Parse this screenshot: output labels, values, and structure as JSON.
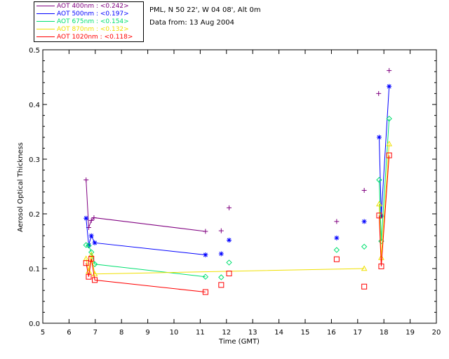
{
  "header": {
    "site_line": "PML, N 50 22', W 04 08', Alt 0m",
    "date_line": "Data from: 13 Aug 2004"
  },
  "chart_data": {
    "type": "scatter",
    "title": "",
    "xlabel": "Time (GMT)",
    "ylabel": "Aerosol Optical Thickness",
    "xlim": [
      5,
      20
    ],
    "ylim": [
      0.0,
      0.5
    ],
    "xticks": [
      "5",
      "6",
      "7",
      "8",
      "9",
      "10",
      "11",
      "12",
      "13",
      "14",
      "15",
      "16",
      "17",
      "18",
      "19",
      "20"
    ],
    "yticks": [
      "0.0",
      "0.1",
      "0.2",
      "0.3",
      "0.4",
      "0.5"
    ],
    "legend_position": "top-left, outside plot",
    "series": [
      {
        "name": "AOT 400nm",
        "legend_label": "AOT  400nm : <0.242>",
        "color": "#800080",
        "marker": "plus",
        "x": [
          6.65,
          6.75,
          6.85,
          6.95,
          11.2,
          11.8,
          12.1,
          16.2,
          17.25,
          17.8,
          18.2
        ],
        "y": [
          0.262,
          0.175,
          0.188,
          0.193,
          0.168,
          0.169,
          0.211,
          0.186,
          0.243,
          0.42,
          0.462
        ],
        "lines": [
          [
            0,
            4
          ],
          [
            9,
            9
          ]
        ]
      },
      {
        "name": "AOT 500nm",
        "legend_label": "AOT  500nm : <0.197>",
        "color": "#0000ff",
        "marker": "asterisk",
        "x": [
          6.65,
          6.75,
          6.85,
          6.98,
          11.2,
          11.8,
          12.1,
          16.2,
          17.25,
          17.82,
          17.9,
          18.2
        ],
        "y": [
          0.192,
          0.143,
          0.16,
          0.147,
          0.125,
          0.127,
          0.152,
          0.156,
          0.186,
          0.34,
          0.196,
          0.433
        ],
        "lines": [
          [
            0,
            4
          ],
          [
            9,
            11
          ]
        ]
      },
      {
        "name": "AOT 675nm",
        "legend_label": "AOT  675nm : <0.154>",
        "color": "#00e070",
        "marker": "diamond",
        "x": [
          6.65,
          6.75,
          6.85,
          6.98,
          11.2,
          11.8,
          12.1,
          16.2,
          17.25,
          17.82,
          17.9,
          18.2
        ],
        "y": [
          0.143,
          0.142,
          0.13,
          0.108,
          0.085,
          0.084,
          0.111,
          0.134,
          0.14,
          0.262,
          0.15,
          0.374
        ],
        "lines": [
          [
            0,
            4
          ],
          [
            9,
            11
          ]
        ]
      },
      {
        "name": "AOT 870nm",
        "legend_label": "AOT  870nm : <0.132>",
        "color": "#f0e000",
        "marker": "triangle",
        "x": [
          6.65,
          6.75,
          6.85,
          6.98,
          17.25,
          17.82,
          17.9,
          18.2
        ],
        "y": [
          0.118,
          0.095,
          0.125,
          0.09,
          0.1,
          0.218,
          0.12,
          0.328
        ],
        "lines": [
          [
            0,
            4
          ],
          [
            5,
            7
          ]
        ]
      },
      {
        "name": "AOT 1020nm",
        "legend_label": "AOT 1020nm : <0.118>",
        "color": "#ff0000",
        "marker": "square",
        "x": [
          6.65,
          6.75,
          6.85,
          6.98,
          11.2,
          11.8,
          12.1,
          16.2,
          17.25,
          17.82,
          17.9,
          18.2
        ],
        "y": [
          0.11,
          0.085,
          0.118,
          0.079,
          0.057,
          0.07,
          0.091,
          0.117,
          0.067,
          0.197,
          0.104,
          0.307
        ],
        "lines": [
          [
            0,
            4
          ],
          [
            9,
            11
          ]
        ]
      }
    ]
  }
}
